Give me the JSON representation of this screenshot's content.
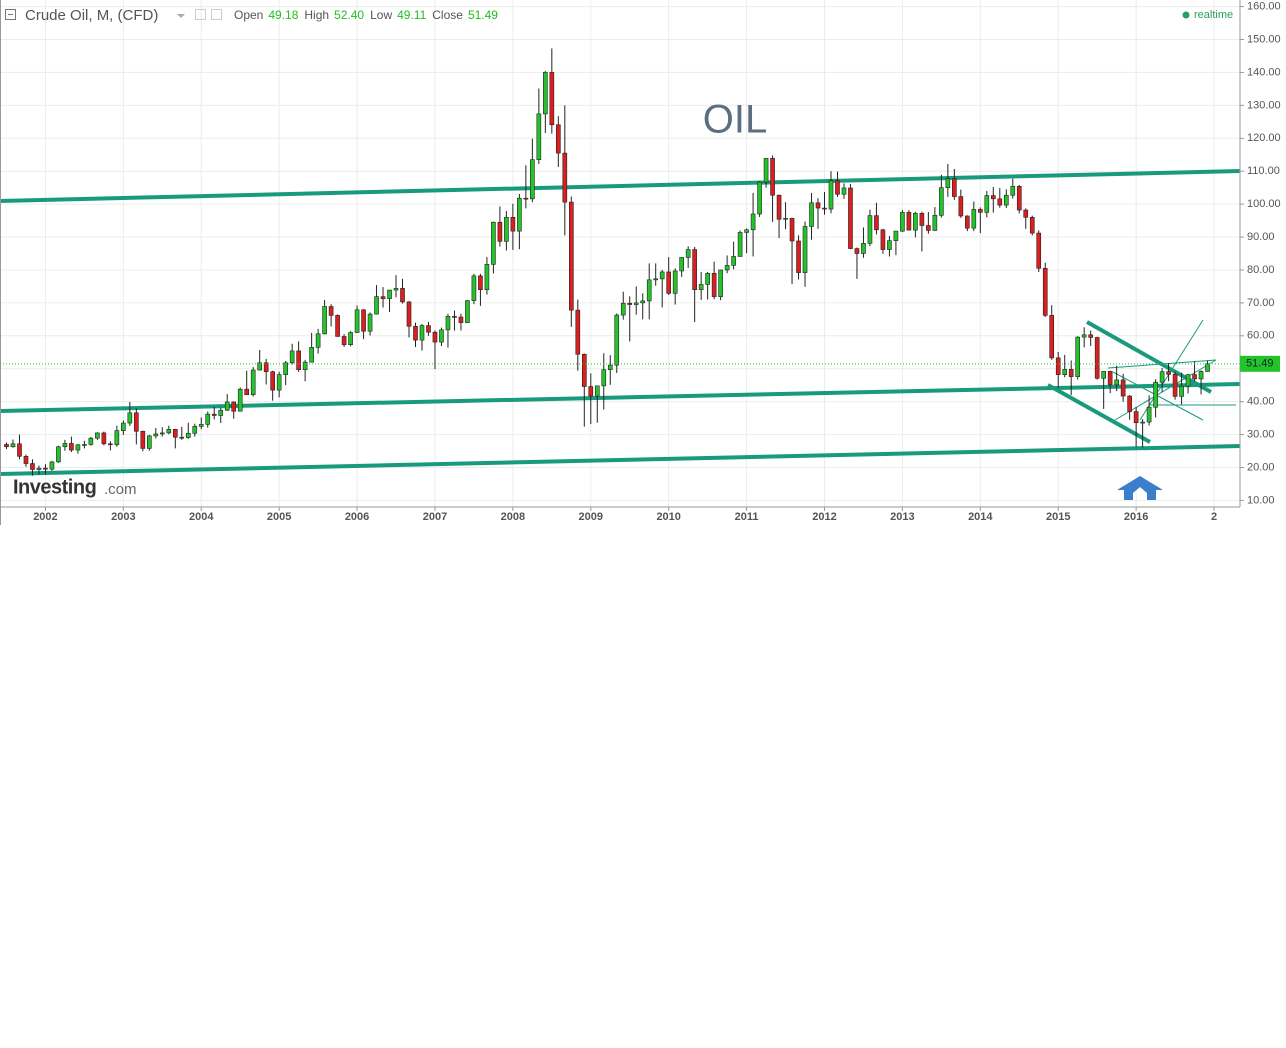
{
  "chart_data": {
    "type": "candlestick",
    "title": "Crude Oil, M, (CFD)",
    "info": [
      {
        "label": "Open",
        "value": "49.18"
      },
      {
        "label": "High",
        "value": "52.40"
      },
      {
        "label": "Low",
        "value": "49.11"
      },
      {
        "label": "Close",
        "value": "51.49"
      }
    ],
    "status": "realtime",
    "annotation": "OIL",
    "brand": [
      "Investing",
      ".com"
    ],
    "up_color": "#22c42a",
    "down_color": "#d91f1f",
    "grid": true,
    "xlim": [
      -1,
      190
    ],
    "xticks": [
      {
        "value": 6,
        "label": "2002"
      },
      {
        "value": 18,
        "label": "2003"
      },
      {
        "value": 30,
        "label": "2004"
      },
      {
        "value": 42,
        "label": "2005"
      },
      {
        "value": 54,
        "label": "2006"
      },
      {
        "value": 66,
        "label": "2007"
      },
      {
        "value": 78,
        "label": "2008"
      },
      {
        "value": 90,
        "label": "2009"
      },
      {
        "value": 102,
        "label": "2010"
      },
      {
        "value": 114,
        "label": "2011"
      },
      {
        "value": 126,
        "label": "2012"
      },
      {
        "value": 138,
        "label": "2013"
      },
      {
        "value": 150,
        "label": "2014"
      },
      {
        "value": 162,
        "label": "2015"
      },
      {
        "value": 174,
        "label": "2016"
      },
      {
        "value": 186,
        "label": "2"
      }
    ],
    "ylim": [
      8,
      162
    ],
    "yticks": [
      {
        "value": 10,
        "label": "10.00"
      },
      {
        "value": 20,
        "label": "20.00"
      },
      {
        "value": 30,
        "label": "30.00"
      },
      {
        "value": 40,
        "label": "40.00"
      },
      {
        "value": 50,
        "label": "50.00"
      },
      {
        "value": 60,
        "label": "60.00"
      },
      {
        "value": 70,
        "label": "70.00"
      },
      {
        "value": 80,
        "label": "80.00"
      },
      {
        "value": 90,
        "label": "90.00"
      },
      {
        "value": 100,
        "label": "100.00"
      },
      {
        "value": 110,
        "label": "110.00"
      },
      {
        "value": 120,
        "label": "120.00"
      },
      {
        "value": 130,
        "label": "130.00"
      },
      {
        "value": 140,
        "label": "140.00"
      },
      {
        "value": 150,
        "label": "150.00"
      },
      {
        "value": 160,
        "label": "160.00"
      }
    ],
    "ohlc": [
      [
        27.0,
        27.6,
        25.6,
        26.3
      ],
      [
        26.3,
        28.5,
        26.0,
        27.2
      ],
      [
        27.2,
        30.0,
        22.5,
        23.4
      ],
      [
        23.4,
        23.9,
        20.2,
        21.2
      ],
      [
        21.2,
        22.5,
        17.5,
        19.4
      ],
      [
        19.4,
        20.6,
        17.8,
        19.8
      ],
      [
        19.8,
        21.0,
        17.9,
        19.5
      ],
      [
        19.5,
        22.0,
        19.0,
        21.7
      ],
      [
        21.7,
        26.6,
        21.4,
        26.3
      ],
      [
        26.3,
        28.4,
        25.1,
        27.3
      ],
      [
        27.3,
        29.4,
        24.7,
        25.3
      ],
      [
        25.3,
        27.1,
        24.2,
        26.9
      ],
      [
        26.9,
        28.1,
        25.8,
        27.0
      ],
      [
        27.0,
        29.3,
        26.6,
        28.9
      ],
      [
        28.9,
        30.7,
        28.4,
        30.5
      ],
      [
        30.5,
        30.9,
        26.7,
        27.2
      ],
      [
        27.2,
        28.0,
        25.2,
        26.9
      ],
      [
        26.9,
        32.7,
        26.3,
        31.2
      ],
      [
        31.2,
        34.3,
        29.9,
        33.5
      ],
      [
        33.5,
        39.9,
        32.6,
        36.6
      ],
      [
        36.6,
        38.0,
        27.0,
        31.0
      ],
      [
        31.0,
        31.2,
        24.9,
        25.8
      ],
      [
        25.8,
        29.9,
        25.1,
        29.6
      ],
      [
        29.6,
        32.0,
        28.8,
        30.2
      ],
      [
        30.2,
        32.2,
        29.4,
        30.5
      ],
      [
        30.5,
        32.7,
        30.1,
        31.6
      ],
      [
        31.6,
        31.7,
        25.8,
        29.2
      ],
      [
        29.2,
        32.4,
        28.4,
        29.1
      ],
      [
        29.1,
        33.6,
        28.7,
        30.4
      ],
      [
        30.4,
        33.3,
        29.4,
        32.5
      ],
      [
        32.5,
        35.2,
        31.6,
        33.1
      ],
      [
        33.1,
        37.0,
        32.1,
        36.2
      ],
      [
        36.2,
        38.4,
        34.6,
        35.8
      ],
      [
        35.8,
        38.2,
        33.5,
        37.4
      ],
      [
        37.4,
        42.3,
        37.2,
        39.9
      ],
      [
        39.9,
        40.1,
        34.8,
        37.1
      ],
      [
        37.1,
        44.3,
        37.1,
        43.8
      ],
      [
        43.8,
        49.4,
        42.0,
        42.1
      ],
      [
        42.1,
        50.5,
        41.6,
        49.6
      ],
      [
        49.6,
        55.7,
        49.5,
        51.8
      ],
      [
        51.8,
        53.0,
        45.2,
        49.1
      ],
      [
        49.1,
        49.4,
        40.3,
        43.5
      ],
      [
        43.5,
        49.1,
        41.3,
        48.2
      ],
      [
        48.2,
        52.3,
        45.0,
        51.8
      ],
      [
        51.8,
        57.6,
        51.3,
        55.4
      ],
      [
        55.4,
        58.3,
        49.0,
        49.7
      ],
      [
        49.7,
        52.7,
        46.2,
        52.0
      ],
      [
        52.0,
        60.9,
        51.9,
        56.5
      ],
      [
        56.5,
        62.1,
        54.6,
        60.6
      ],
      [
        60.6,
        70.9,
        60.4,
        68.9
      ],
      [
        68.9,
        69.6,
        62.8,
        66.2
      ],
      [
        66.2,
        66.5,
        59.8,
        59.8
      ],
      [
        59.8,
        60.5,
        56.6,
        57.3
      ],
      [
        57.3,
        61.4,
        56.8,
        61.0
      ],
      [
        61.0,
        69.2,
        60.9,
        67.9
      ],
      [
        67.9,
        68.1,
        59.0,
        61.4
      ],
      [
        61.4,
        67.1,
        60.1,
        66.6
      ],
      [
        66.6,
        75.4,
        66.5,
        71.9
      ],
      [
        71.9,
        74.8,
        68.6,
        71.3
      ],
      [
        71.3,
        73.9,
        67.2,
        73.9
      ],
      [
        73.9,
        78.4,
        71.7,
        74.4
      ],
      [
        74.4,
        77.3,
        69.8,
        70.3
      ],
      [
        70.3,
        70.5,
        59.5,
        62.9
      ],
      [
        62.9,
        64.0,
        56.6,
        58.7
      ],
      [
        58.7,
        63.6,
        55.5,
        63.1
      ],
      [
        63.1,
        64.2,
        60.0,
        61.1
      ],
      [
        61.1,
        61.6,
        49.9,
        58.1
      ],
      [
        58.1,
        62.5,
        56.9,
        61.8
      ],
      [
        61.8,
        66.7,
        56.4,
        65.9
      ],
      [
        65.9,
        67.7,
        61.6,
        65.7
      ],
      [
        65.7,
        66.7,
        61.6,
        64.0
      ],
      [
        64.0,
        70.9,
        63.9,
        70.7
      ],
      [
        70.7,
        78.8,
        69.6,
        78.2
      ],
      [
        78.2,
        78.8,
        69.1,
        74.0
      ],
      [
        74.0,
        83.9,
        72.5,
        81.7
      ],
      [
        81.7,
        94.7,
        78.9,
        94.5
      ],
      [
        94.5,
        99.3,
        87.1,
        88.7
      ],
      [
        88.7,
        97.9,
        85.9,
        96.0
      ],
      [
        96.0,
        100.1,
        86.1,
        91.8
      ],
      [
        91.8,
        103.1,
        86.3,
        101.8
      ],
      [
        101.8,
        111.8,
        98.7,
        101.6
      ],
      [
        101.6,
        119.9,
        100.6,
        113.5
      ],
      [
        113.5,
        135.1,
        112.2,
        127.4
      ],
      [
        127.4,
        140.4,
        121.6,
        140.0
      ],
      [
        140.0,
        147.3,
        121.4,
        124.1
      ],
      [
        124.1,
        126.7,
        111.3,
        115.5
      ],
      [
        115.5,
        130.0,
        90.5,
        100.6
      ],
      [
        100.6,
        102.3,
        62.7,
        67.8
      ],
      [
        67.8,
        71.0,
        49.4,
        54.4
      ],
      [
        54.4,
        54.6,
        32.4,
        44.6
      ],
      [
        44.6,
        48.6,
        33.2,
        41.7
      ],
      [
        41.7,
        44.2,
        33.6,
        44.8
      ],
      [
        44.8,
        54.7,
        37.6,
        49.7
      ],
      [
        49.7,
        54.1,
        45.1,
        51.1
      ],
      [
        51.1,
        66.8,
        48.7,
        66.3
      ],
      [
        66.3,
        73.4,
        64.9,
        69.9
      ],
      [
        69.9,
        72.0,
        58.3,
        69.5
      ],
      [
        69.5,
        75.0,
        66.4,
        70.0
      ],
      [
        70.0,
        72.9,
        65.0,
        70.6
      ],
      [
        70.6,
        82.0,
        65.0,
        77.0
      ],
      [
        77.0,
        82.0,
        75.2,
        77.3
      ],
      [
        77.3,
        80.0,
        68.6,
        79.4
      ],
      [
        79.4,
        83.9,
        72.4,
        72.9
      ],
      [
        72.9,
        80.5,
        69.5,
        79.7
      ],
      [
        79.7,
        83.9,
        77.9,
        83.8
      ],
      [
        83.8,
        87.2,
        80.6,
        86.2
      ],
      [
        86.2,
        87.0,
        64.2,
        74.0
      ],
      [
        74.0,
        79.4,
        70.9,
        75.6
      ],
      [
        75.6,
        79.4,
        71.0,
        79.0
      ],
      [
        79.0,
        82.5,
        71.1,
        71.9
      ],
      [
        71.9,
        80.1,
        70.8,
        80.0
      ],
      [
        80.0,
        84.4,
        79.0,
        81.4
      ],
      [
        81.4,
        88.6,
        80.2,
        84.1
      ],
      [
        84.1,
        92.0,
        84.1,
        91.4
      ],
      [
        91.4,
        92.6,
        85.1,
        92.2
      ],
      [
        92.2,
        103.4,
        84.1,
        97.0
      ],
      [
        97.0,
        107.0,
        96.1,
        106.7
      ],
      [
        106.7,
        114.0,
        105.0,
        113.9
      ],
      [
        113.9,
        114.8,
        94.6,
        102.7
      ],
      [
        102.7,
        102.9,
        89.7,
        95.4
      ],
      [
        95.4,
        100.6,
        92.4,
        95.7
      ],
      [
        95.7,
        95.8,
        75.7,
        88.8
      ],
      [
        88.8,
        90.5,
        77.1,
        79.2
      ],
      [
        79.2,
        94.7,
        74.9,
        93.2
      ],
      [
        93.2,
        103.4,
        89.2,
        100.4
      ],
      [
        100.4,
        101.8,
        92.5,
        98.8
      ],
      [
        98.8,
        103.7,
        96.8,
        98.5
      ],
      [
        98.5,
        110.0,
        97.2,
        107.1
      ],
      [
        107.1,
        109.9,
        102.2,
        103.0
      ],
      [
        103.0,
        106.3,
        101.6,
        104.9
      ],
      [
        104.9,
        106.1,
        86.3,
        86.5
      ],
      [
        86.5,
        86.8,
        77.3,
        85.0
      ],
      [
        85.0,
        92.9,
        83.7,
        88.1
      ],
      [
        88.1,
        98.3,
        87.2,
        96.5
      ],
      [
        96.5,
        100.4,
        90.8,
        92.2
      ],
      [
        92.2,
        92.5,
        84.9,
        86.2
      ],
      [
        86.2,
        90.3,
        84.1,
        88.9
      ],
      [
        88.9,
        91.8,
        84.5,
        91.8
      ],
      [
        91.8,
        98.2,
        91.5,
        97.5
      ],
      [
        97.5,
        98.2,
        92.0,
        92.1
      ],
      [
        92.1,
        97.7,
        89.9,
        97.2
      ],
      [
        97.2,
        97.7,
        85.6,
        93.5
      ],
      [
        93.5,
        97.6,
        91.0,
        92.0
      ],
      [
        92.0,
        99.1,
        91.9,
        96.6
      ],
      [
        96.6,
        108.9,
        95.9,
        105.0
      ],
      [
        105.0,
        112.2,
        102.2,
        107.7
      ],
      [
        107.7,
        110.7,
        101.3,
        102.3
      ],
      [
        102.3,
        104.4,
        95.8,
        96.4
      ],
      [
        96.4,
        96.6,
        91.8,
        92.7
      ],
      [
        92.7,
        100.8,
        91.8,
        98.4
      ],
      [
        98.4,
        99.0,
        91.2,
        97.5
      ],
      [
        97.5,
        104.0,
        96.0,
        102.6
      ],
      [
        102.6,
        105.2,
        97.4,
        101.6
      ],
      [
        101.6,
        104.9,
        98.9,
        99.7
      ],
      [
        99.7,
        104.5,
        98.8,
        102.7
      ],
      [
        102.7,
        107.7,
        101.7,
        105.4
      ],
      [
        105.4,
        105.8,
        97.2,
        98.2
      ],
      [
        98.2,
        98.7,
        92.5,
        96.0
      ],
      [
        96.0,
        96.5,
        90.5,
        91.2
      ],
      [
        91.2,
        92.0,
        79.4,
        80.5
      ],
      [
        80.5,
        82.2,
        65.7,
        66.2
      ],
      [
        66.2,
        69.3,
        52.7,
        53.3
      ],
      [
        53.3,
        55.1,
        44.2,
        48.2
      ],
      [
        48.2,
        54.2,
        47.4,
        49.8
      ],
      [
        49.8,
        52.5,
        42.0,
        47.6
      ],
      [
        47.6,
        59.9,
        46.7,
        59.6
      ],
      [
        59.6,
        62.6,
        56.5,
        60.3
      ],
      [
        60.3,
        61.6,
        56.9,
        59.5
      ],
      [
        59.5,
        59.7,
        46.7,
        47.1
      ],
      [
        47.1,
        49.3,
        37.8,
        49.2
      ],
      [
        49.2,
        49.4,
        42.6,
        45.1
      ],
      [
        45.1,
        50.9,
        43.2,
        46.6
      ],
      [
        46.6,
        48.4,
        40.0,
        41.7
      ],
      [
        41.7,
        42.0,
        34.5,
        37.0
      ],
      [
        37.0,
        38.4,
        26.2,
        33.6
      ],
      [
        33.6,
        34.7,
        26.1,
        33.8
      ],
      [
        33.8,
        41.9,
        32.8,
        38.3
      ],
      [
        38.3,
        46.8,
        35.2,
        45.9
      ],
      [
        45.9,
        50.2,
        43.0,
        49.1
      ],
      [
        49.1,
        51.7,
        46.2,
        48.3
      ],
      [
        48.3,
        49.1,
        40.6,
        41.6
      ],
      [
        41.6,
        48.8,
        39.2,
        44.7
      ],
      [
        44.7,
        48.4,
        42.5,
        48.2
      ],
      [
        48.2,
        52.2,
        46.2,
        46.9
      ],
      [
        46.9,
        49.5,
        42.2,
        49.18
      ],
      [
        49.18,
        52.4,
        49.11,
        51.49
      ]
    ]
  }
}
